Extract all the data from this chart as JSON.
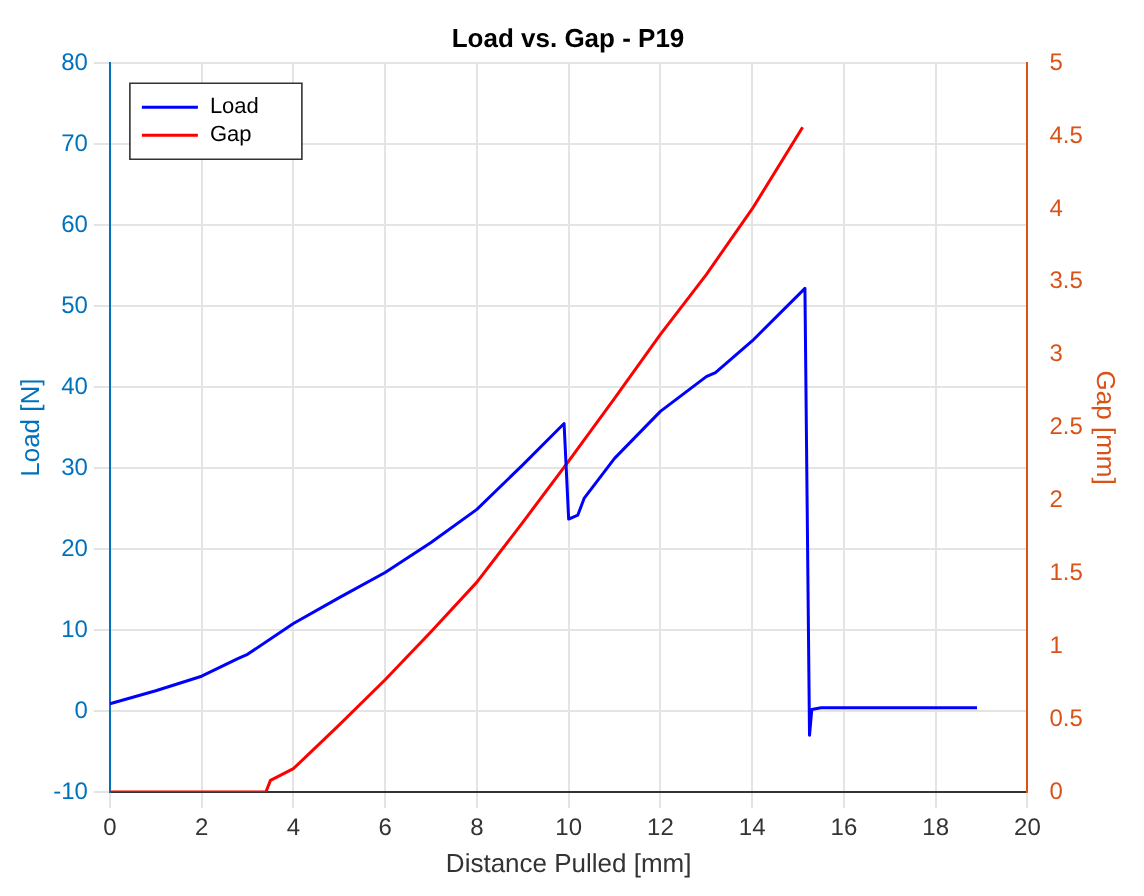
{
  "chart_data": {
    "type": "line",
    "title": "Load vs. Gap - P19",
    "xlabel": "Distance Pulled [mm]",
    "ylabel": "Load [N]",
    "y2label": "Gap [mm]",
    "xlim": [
      0,
      20
    ],
    "xticks": [
      0,
      2,
      4,
      6,
      8,
      10,
      12,
      14,
      16,
      18,
      20
    ],
    "ylim": [
      -10,
      80
    ],
    "yticks": [
      -10,
      0,
      10,
      20,
      30,
      40,
      50,
      60,
      70,
      80
    ],
    "y2lim": [
      0,
      5
    ],
    "y2ticks": [
      0,
      0.5,
      1,
      1.5,
      2,
      2.5,
      3,
      3.5,
      4,
      4.5,
      5
    ],
    "grid": true,
    "legend": "top left",
    "marker": "none",
    "line_style": "solid",
    "series": [
      {
        "name": "Load",
        "color": "#0000ff",
        "x": [
          0,
          1,
          2,
          2.8,
          3,
          4,
          5,
          6,
          7,
          8,
          9,
          9.9,
          10,
          10.2,
          10.34,
          11,
          12,
          13,
          13.2,
          14,
          15.15,
          15.25,
          15.3,
          15.5,
          18.9
        ],
        "values": [
          0.9,
          2.5,
          4.3,
          6.5,
          7,
          10.8,
          14,
          17.1,
          20.8,
          24.9,
          30.4,
          35.5,
          23.7,
          24.2,
          26.3,
          31.2,
          37,
          41.3,
          41.8,
          45.7,
          52.2,
          -3,
          0.2,
          0.4,
          0.4
        ]
      },
      {
        "name": "Gap",
        "color": "#ff0000",
        "axis": "y2",
        "x": [
          0,
          3.4,
          3.5,
          4,
          5,
          6,
          7,
          8,
          9,
          10,
          11,
          12,
          13,
          14,
          15.1
        ],
        "values": [
          0,
          0,
          0.08,
          0.16,
          0.46,
          0.77,
          1.1,
          1.44,
          1.85,
          2.27,
          2.7,
          3.14,
          3.55,
          4.0,
          4.56
        ]
      }
    ]
  }
}
